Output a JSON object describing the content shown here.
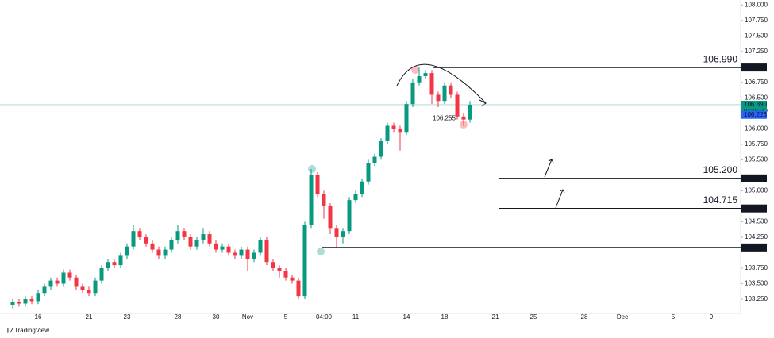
{
  "chart_data": {
    "type": "candlestick",
    "brand": "TradingView",
    "up_color": "#089981",
    "down_color": "#f23645",
    "categories": [
      null,
      null,
      null,
      null,
      "16",
      null,
      null,
      null,
      null,
      null,
      null,
      null,
      "21",
      null,
      null,
      null,
      null,
      null,
      "23",
      null,
      null,
      null,
      null,
      null,
      null,
      null,
      "28",
      null,
      null,
      null,
      null,
      null,
      "30",
      null,
      null,
      null,
      null,
      "Nov",
      null,
      null,
      null,
      null,
      null,
      "5",
      null,
      null,
      null,
      null,
      null,
      "04:00",
      null,
      null,
      null,
      null,
      "11",
      null,
      null,
      null,
      null,
      null,
      null,
      null,
      "14",
      null,
      null,
      null,
      null,
      null,
      "18",
      null,
      null,
      null,
      null,
      null,
      null,
      null,
      "21",
      null,
      null,
      null,
      null,
      null,
      "25",
      null,
      null,
      null,
      null,
      null,
      null,
      null,
      "28",
      null,
      null,
      null,
      null,
      null,
      "Dec",
      null,
      null,
      null,
      null,
      null,
      null,
      null,
      "5",
      null,
      null,
      null,
      null,
      null,
      "9"
    ],
    "open": [
      103.15,
      103.2,
      103.18,
      103.25,
      103.22,
      103.35,
      103.45,
      103.55,
      103.5,
      103.68,
      103.6,
      103.45,
      103.4,
      103.35,
      103.55,
      103.75,
      103.85,
      103.8,
      103.95,
      104.1,
      104.35,
      104.25,
      104.15,
      104.05,
      103.95,
      104.05,
      104.2,
      104.35,
      104.25,
      104.1,
      104.2,
      104.3,
      104.15,
      104.05,
      104.1,
      104.0,
      103.95,
      104.05,
      103.9,
      104.0,
      104.2,
      103.85,
      103.75,
      103.7,
      103.6,
      103.55,
      103.3,
      104.45,
      105.25,
      104.95,
      104.75,
      104.4,
      104.25,
      104.35,
      104.85,
      104.95,
      105.15,
      105.45,
      105.55,
      105.8,
      106.05,
      106.0,
      105.95,
      106.4,
      106.75,
      106.85,
      106.9,
      106.55,
      106.45,
      106.7,
      106.55,
      106.2,
      106.15,
      null,
      null,
      null,
      null,
      null,
      null,
      null,
      null,
      null,
      null,
      null,
      null,
      null,
      null,
      null,
      null,
      null,
      null,
      null,
      null,
      null,
      null,
      null,
      null,
      null,
      null,
      null,
      null,
      null,
      null,
      null,
      null,
      null,
      null,
      null,
      null,
      null,
      null
    ],
    "high": [
      103.25,
      103.25,
      103.3,
      103.3,
      103.4,
      103.5,
      103.6,
      103.6,
      103.73,
      103.73,
      103.65,
      103.5,
      103.45,
      103.6,
      103.8,
      103.9,
      103.9,
      104.0,
      104.15,
      104.45,
      104.4,
      104.3,
      104.2,
      104.1,
      104.1,
      104.25,
      104.45,
      104.4,
      104.3,
      104.25,
      104.4,
      104.35,
      104.2,
      104.15,
      104.15,
      104.05,
      104.1,
      104.1,
      104.05,
      104.25,
      104.25,
      103.9,
      103.8,
      103.75,
      103.65,
      103.6,
      104.5,
      105.35,
      105.3,
      105.0,
      104.8,
      104.45,
      104.4,
      104.9,
      105.0,
      105.2,
      105.5,
      105.6,
      105.85,
      106.1,
      106.1,
      106.05,
      106.45,
      106.8,
      106.99,
      106.95,
      106.95,
      106.6,
      106.75,
      106.75,
      106.6,
      106.25,
      106.45,
      null,
      null,
      null,
      null,
      null,
      null,
      null,
      null,
      null,
      null,
      null,
      null,
      null,
      null,
      null,
      null,
      null,
      null,
      null,
      null,
      null,
      null,
      null,
      null,
      null,
      null,
      null,
      null,
      null,
      null,
      null,
      null,
      null,
      null,
      null,
      null,
      null,
      null
    ],
    "low": [
      103.1,
      103.13,
      103.13,
      103.17,
      103.17,
      103.3,
      103.4,
      103.45,
      103.45,
      103.55,
      103.4,
      103.35,
      103.3,
      103.3,
      103.5,
      103.7,
      103.75,
      103.75,
      103.9,
      104.05,
      104.2,
      104.1,
      104.0,
      103.9,
      103.9,
      104.0,
      104.15,
      104.2,
      104.05,
      104.05,
      104.15,
      104.1,
      104.0,
      104.0,
      103.95,
      103.9,
      103.9,
      103.7,
      103.85,
      103.95,
      103.8,
      103.7,
      103.6,
      103.55,
      103.5,
      103.25,
      103.25,
      104.4,
      104.9,
      104.55,
      104.3,
      104.09,
      104.15,
      104.3,
      104.8,
      104.9,
      105.1,
      105.4,
      105.5,
      105.75,
      105.95,
      105.65,
      105.9,
      106.35,
      106.7,
      106.8,
      106.4,
      106.35,
      106.4,
      106.5,
      106.15,
      106.05,
      106.1,
      null,
      null,
      null,
      null,
      null,
      null,
      null,
      null,
      null,
      null,
      null,
      null,
      null,
      null,
      null,
      null,
      null,
      null,
      null,
      null,
      null,
      null,
      null,
      null,
      null,
      null,
      null,
      null,
      null,
      null,
      null,
      null,
      null,
      null,
      null,
      null,
      null,
      null
    ],
    "close": [
      103.2,
      103.18,
      103.25,
      103.22,
      103.35,
      103.45,
      103.55,
      103.5,
      103.68,
      103.6,
      103.45,
      103.4,
      103.35,
      103.55,
      103.75,
      103.85,
      103.8,
      103.95,
      104.1,
      104.35,
      104.25,
      104.15,
      104.05,
      103.95,
      104.05,
      104.2,
      104.35,
      104.25,
      104.1,
      104.2,
      104.3,
      104.15,
      104.05,
      104.1,
      104.0,
      103.95,
      104.05,
      103.9,
      104.0,
      104.2,
      103.85,
      103.75,
      103.7,
      103.6,
      103.55,
      103.3,
      104.45,
      105.25,
      104.95,
      104.75,
      104.4,
      104.25,
      104.35,
      104.85,
      104.95,
      105.15,
      105.45,
      105.55,
      105.8,
      106.05,
      106.0,
      105.95,
      106.4,
      106.75,
      106.85,
      106.9,
      106.55,
      106.45,
      106.7,
      106.55,
      106.2,
      106.15,
      106.39,
      null,
      null,
      null,
      null,
      null,
      null,
      null,
      null,
      null,
      null,
      null,
      null,
      null,
      null,
      null,
      null,
      null,
      null,
      null,
      null,
      null,
      null,
      null,
      null,
      null,
      null,
      null,
      null,
      null,
      null,
      null,
      null,
      null,
      null,
      null,
      null,
      null,
      null
    ],
    "ylim": [
      103.02,
      108.08
    ],
    "yticks": [
      {
        "value": 108,
        "label": "108.000"
      },
      {
        "value": 107.75,
        "label": "107.750"
      },
      {
        "value": 107.5,
        "label": "107.500"
      },
      {
        "value": 107.25,
        "label": "107.250"
      },
      {
        "value": 106.75,
        "label": "106.750"
      },
      {
        "value": 106.5,
        "label": "106.500"
      },
      {
        "value": 106,
        "label": "106.000"
      },
      {
        "value": 105.75,
        "label": "105.750"
      },
      {
        "value": 105.5,
        "label": "105.500"
      },
      {
        "value": 105,
        "label": "105.000"
      },
      {
        "value": 104.5,
        "label": "104.500"
      },
      {
        "value": 104.25,
        "label": "104.250"
      },
      {
        "value": 103.75,
        "label": "103.750"
      },
      {
        "value": 103.5,
        "label": "103.500"
      },
      {
        "value": 103.25,
        "label": "103.250"
      }
    ],
    "levels": [
      {
        "value": 106.99,
        "label": "106.990",
        "color": "#f23645"
      },
      {
        "value": 105.2,
        "label": "105.200",
        "color": "#131722"
      },
      {
        "value": 104.715,
        "label": "104.715",
        "color": "#131722"
      },
      {
        "value": 104.085,
        "label": "104.085",
        "color": "#131722"
      }
    ],
    "last_price": {
      "value": 106.39,
      "label": "106.390",
      "countdown": "01:05:47",
      "color": "#089981"
    },
    "bid_price": {
      "value": 106.226,
      "label": "106.226",
      "color": "#2962ff"
    },
    "annotation": {
      "value": 106.255,
      "label": "106.255"
    }
  }
}
